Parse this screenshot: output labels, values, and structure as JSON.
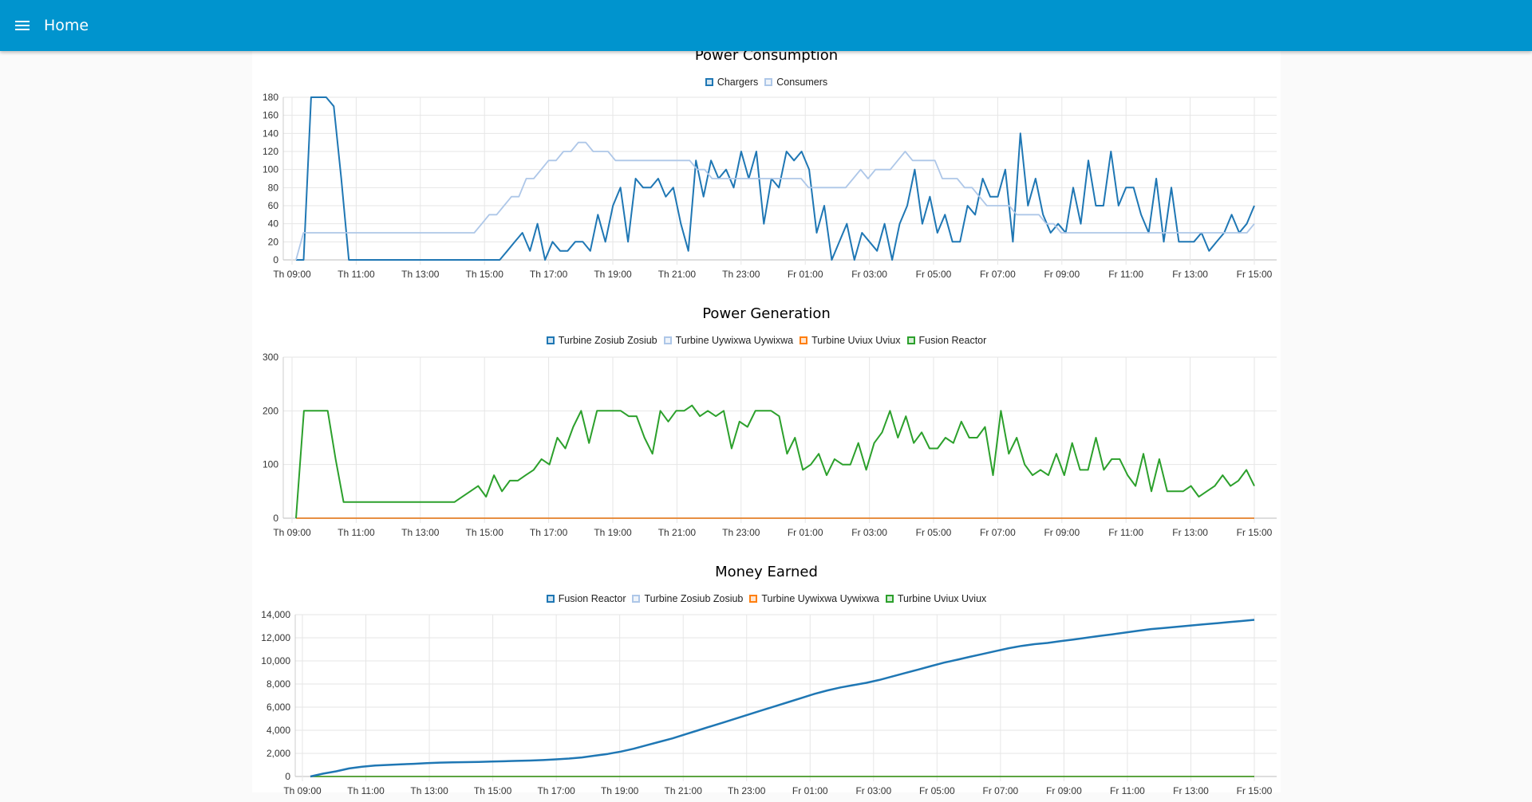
{
  "appbar": {
    "title": "Home"
  },
  "colors": {
    "c1": "#1f77b4",
    "c2": "#aec7e8",
    "c3": "#ff7f0e",
    "c4": "#2ca02c",
    "appbar": "#0094ce"
  },
  "x_ticks": [
    "Th 09:00",
    "Th 11:00",
    "Th 13:00",
    "Th 15:00",
    "Th 17:00",
    "Th 19:00",
    "Th 21:00",
    "Th 23:00",
    "Fr 01:00",
    "Fr 03:00",
    "Fr 05:00",
    "Fr 07:00",
    "Fr 09:00",
    "Fr 11:00",
    "Fr 13:00",
    "Fr 15:00"
  ],
  "chart_data": [
    {
      "type": "line",
      "title": "Power Consumption",
      "ylim": [
        0,
        180
      ],
      "yticks": [
        "0",
        "20",
        "40",
        "60",
        "80",
        "100",
        "120",
        "140",
        "160",
        "180"
      ],
      "series": [
        {
          "name": "Chargers",
          "color": "#1f77b4",
          "width": 2,
          "values": [
            0,
            0,
            180,
            180,
            180,
            170,
            90,
            0,
            0,
            0,
            0,
            0,
            0,
            0,
            0,
            0,
            0,
            0,
            0,
            0,
            0,
            0,
            0,
            0,
            0,
            0,
            0,
            0,
            10,
            20,
            30,
            10,
            40,
            0,
            20,
            10,
            10,
            20,
            20,
            10,
            50,
            20,
            60,
            80,
            20,
            90,
            80,
            80,
            90,
            70,
            80,
            40,
            10,
            110,
            70,
            110,
            90,
            100,
            80,
            120,
            90,
            120,
            40,
            90,
            80,
            120,
            110,
            120,
            100,
            30,
            60,
            0,
            20,
            40,
            0,
            30,
            20,
            10,
            40,
            0,
            40,
            60,
            100,
            40,
            70,
            30,
            50,
            20,
            20,
            60,
            50,
            90,
            70,
            70,
            100,
            20,
            140,
            60,
            90,
            50,
            30,
            40,
            30,
            80,
            40,
            110,
            60,
            60,
            120,
            60,
            80,
            80,
            50,
            30,
            90,
            20,
            80,
            20,
            20,
            20,
            30,
            10,
            20,
            30,
            50,
            30,
            40,
            60
          ]
        },
        {
          "name": "Consumers",
          "color": "#aec7e8",
          "width": 1.8,
          "values": [
            0,
            30,
            30,
            30,
            30,
            30,
            30,
            30,
            30,
            30,
            30,
            30,
            30,
            30,
            30,
            30,
            30,
            30,
            30,
            30,
            30,
            30,
            30,
            30,
            30,
            40,
            50,
            50,
            60,
            70,
            70,
            90,
            90,
            100,
            110,
            110,
            120,
            120,
            130,
            130,
            120,
            120,
            120,
            110,
            110,
            110,
            110,
            110,
            110,
            110,
            110,
            110,
            110,
            110,
            100,
            100,
            90,
            90,
            90,
            90,
            90,
            90,
            90,
            90,
            90,
            90,
            90,
            90,
            90,
            80,
            80,
            80,
            80,
            80,
            80,
            90,
            100,
            90,
            100,
            100,
            100,
            110,
            120,
            110,
            110,
            110,
            110,
            90,
            90,
            90,
            80,
            80,
            70,
            60,
            60,
            60,
            60,
            50,
            50,
            50,
            50,
            40,
            40,
            30,
            30,
            30,
            30,
            30,
            30,
            30,
            30,
            30,
            30,
            30,
            30,
            30,
            30,
            30,
            30,
            30,
            30,
            30,
            30,
            30,
            30,
            30,
            30,
            30,
            30,
            40
          ]
        }
      ]
    },
    {
      "type": "line",
      "title": "Power Generation",
      "ylim": [
        0,
        300
      ],
      "yticks": [
        "0",
        "100",
        "200",
        "300"
      ],
      "series": [
        {
          "name": "Turbine Zosiub Zosiub",
          "color": "#1f77b4",
          "width": 1.5,
          "values": [
            0,
            0
          ]
        },
        {
          "name": "Turbine Uywixwa Uywixwa",
          "color": "#aec7e8",
          "width": 1.5,
          "values": [
            0,
            0
          ]
        },
        {
          "name": "Turbine Uviux Uviux",
          "color": "#ff7f0e",
          "width": 1.5,
          "values": [
            0,
            0
          ]
        },
        {
          "name": "Fusion Reactor",
          "color": "#2ca02c",
          "width": 2,
          "values": [
            0,
            200,
            200,
            200,
            200,
            110,
            30,
            30,
            30,
            30,
            30,
            30,
            30,
            30,
            30,
            30,
            30,
            30,
            30,
            30,
            30,
            40,
            50,
            60,
            40,
            80,
            50,
            70,
            70,
            80,
            90,
            110,
            100,
            150,
            130,
            170,
            200,
            140,
            200,
            200,
            200,
            200,
            190,
            190,
            150,
            120,
            200,
            180,
            200,
            200,
            210,
            190,
            200,
            190,
            200,
            130,
            180,
            170,
            200,
            200,
            200,
            190,
            120,
            150,
            90,
            100,
            120,
            80,
            110,
            100,
            100,
            140,
            90,
            140,
            160,
            200,
            150,
            190,
            140,
            160,
            130,
            130,
            150,
            140,
            180,
            150,
            150,
            170,
            80,
            200,
            120,
            150,
            100,
            80,
            90,
            80,
            120,
            80,
            140,
            90,
            90,
            150,
            90,
            110,
            110,
            80,
            60,
            120,
            50,
            110,
            50,
            50,
            50,
            60,
            40,
            50,
            60,
            80,
            60,
            70,
            90,
            60
          ]
        }
      ]
    },
    {
      "type": "line",
      "title": "Money Earned",
      "ylim": [
        0,
        14000
      ],
      "yticks": [
        "0",
        "2,000",
        "4,000",
        "6,000",
        "8,000",
        "10,000",
        "12,000",
        "14,000"
      ],
      "series": [
        {
          "name": "Fusion Reactor",
          "color": "#1f77b4",
          "width": 2.5,
          "values": [
            0,
            250,
            450,
            700,
            850,
            950,
            1000,
            1050,
            1100,
            1150,
            1200,
            1220,
            1240,
            1260,
            1290,
            1320,
            1350,
            1380,
            1420,
            1480,
            1550,
            1650,
            1800,
            1950,
            2150,
            2400,
            2700,
            3000,
            3300,
            3650,
            4000,
            4350,
            4700,
            5050,
            5400,
            5750,
            6100,
            6450,
            6800,
            7150,
            7450,
            7700,
            7900,
            8100,
            8350,
            8650,
            8950,
            9250,
            9550,
            9850,
            10100,
            10350,
            10600,
            10850,
            11100,
            11300,
            11450,
            11550,
            11700,
            11850,
            12000,
            12150,
            12300,
            12450,
            12600,
            12750,
            12850,
            12950,
            13050,
            13150,
            13250,
            13350,
            13450,
            13550
          ]
        },
        {
          "name": "Turbine Zosiub Zosiub",
          "color": "#aec7e8",
          "width": 1.5,
          "values": [
            0,
            0
          ]
        },
        {
          "name": "Turbine Uywixwa Uywixwa",
          "color": "#ff7f0e",
          "width": 1.5,
          "values": [
            0,
            0
          ]
        },
        {
          "name": "Turbine Uviux Uviux",
          "color": "#2ca02c",
          "width": 1.5,
          "values": [
            0,
            0
          ]
        }
      ]
    }
  ]
}
